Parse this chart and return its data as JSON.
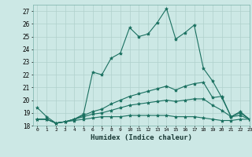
{
  "xlabel": "Humidex (Indice chaleur)",
  "xlim": [
    -0.5,
    23
  ],
  "ylim": [
    18,
    27.5
  ],
  "yticks": [
    18,
    19,
    20,
    21,
    22,
    23,
    24,
    25,
    26,
    27
  ],
  "xticks": [
    0,
    1,
    2,
    3,
    4,
    5,
    6,
    7,
    8,
    9,
    10,
    11,
    12,
    13,
    14,
    15,
    16,
    17,
    18,
    19,
    20,
    21,
    22,
    23
  ],
  "bg_color": "#cce8e5",
  "grid_color": "#b0d0cc",
  "line_color": "#1a7060",
  "lines": [
    {
      "x": [
        0,
        1,
        2,
        3,
        4,
        5,
        6,
        7,
        8,
        9,
        10,
        11,
        12,
        13,
        14,
        15,
        16,
        17,
        18,
        19,
        20,
        21,
        22,
        23
      ],
      "y": [
        19.4,
        18.7,
        18.2,
        18.3,
        18.5,
        18.9,
        22.2,
        22.0,
        23.3,
        23.7,
        25.7,
        25.0,
        25.2,
        26.1,
        27.2,
        24.8,
        25.3,
        25.9,
        22.5,
        21.5,
        20.2,
        18.7,
        19.1,
        18.5
      ]
    },
    {
      "x": [
        0,
        1,
        2,
        3,
        4,
        5,
        6,
        7,
        8,
        9,
        10,
        11,
        12,
        13,
        14,
        15,
        16,
        17,
        18,
        19,
        20,
        21,
        22,
        23
      ],
      "y": [
        18.5,
        18.5,
        18.2,
        18.3,
        18.5,
        18.8,
        19.1,
        19.3,
        19.7,
        20.0,
        20.3,
        20.5,
        20.7,
        20.9,
        21.1,
        20.8,
        21.1,
        21.3,
        21.4,
        20.2,
        20.3,
        18.7,
        19.0,
        18.5
      ]
    },
    {
      "x": [
        0,
        1,
        2,
        3,
        4,
        5,
        6,
        7,
        8,
        9,
        10,
        11,
        12,
        13,
        14,
        15,
        16,
        17,
        18,
        19,
        20,
        21,
        22,
        23
      ],
      "y": [
        18.5,
        18.5,
        18.2,
        18.3,
        18.5,
        18.7,
        18.9,
        19.0,
        19.2,
        19.4,
        19.6,
        19.7,
        19.8,
        19.9,
        20.0,
        19.9,
        20.0,
        20.1,
        20.1,
        19.6,
        19.2,
        18.7,
        18.8,
        18.5
      ]
    },
    {
      "x": [
        0,
        1,
        2,
        3,
        4,
        5,
        6,
        7,
        8,
        9,
        10,
        11,
        12,
        13,
        14,
        15,
        16,
        17,
        18,
        19,
        20,
        21,
        22,
        23
      ],
      "y": [
        18.5,
        18.5,
        18.2,
        18.3,
        18.4,
        18.5,
        18.6,
        18.7,
        18.7,
        18.7,
        18.8,
        18.8,
        18.8,
        18.8,
        18.8,
        18.7,
        18.7,
        18.7,
        18.6,
        18.5,
        18.4,
        18.4,
        18.5,
        18.5
      ]
    }
  ]
}
